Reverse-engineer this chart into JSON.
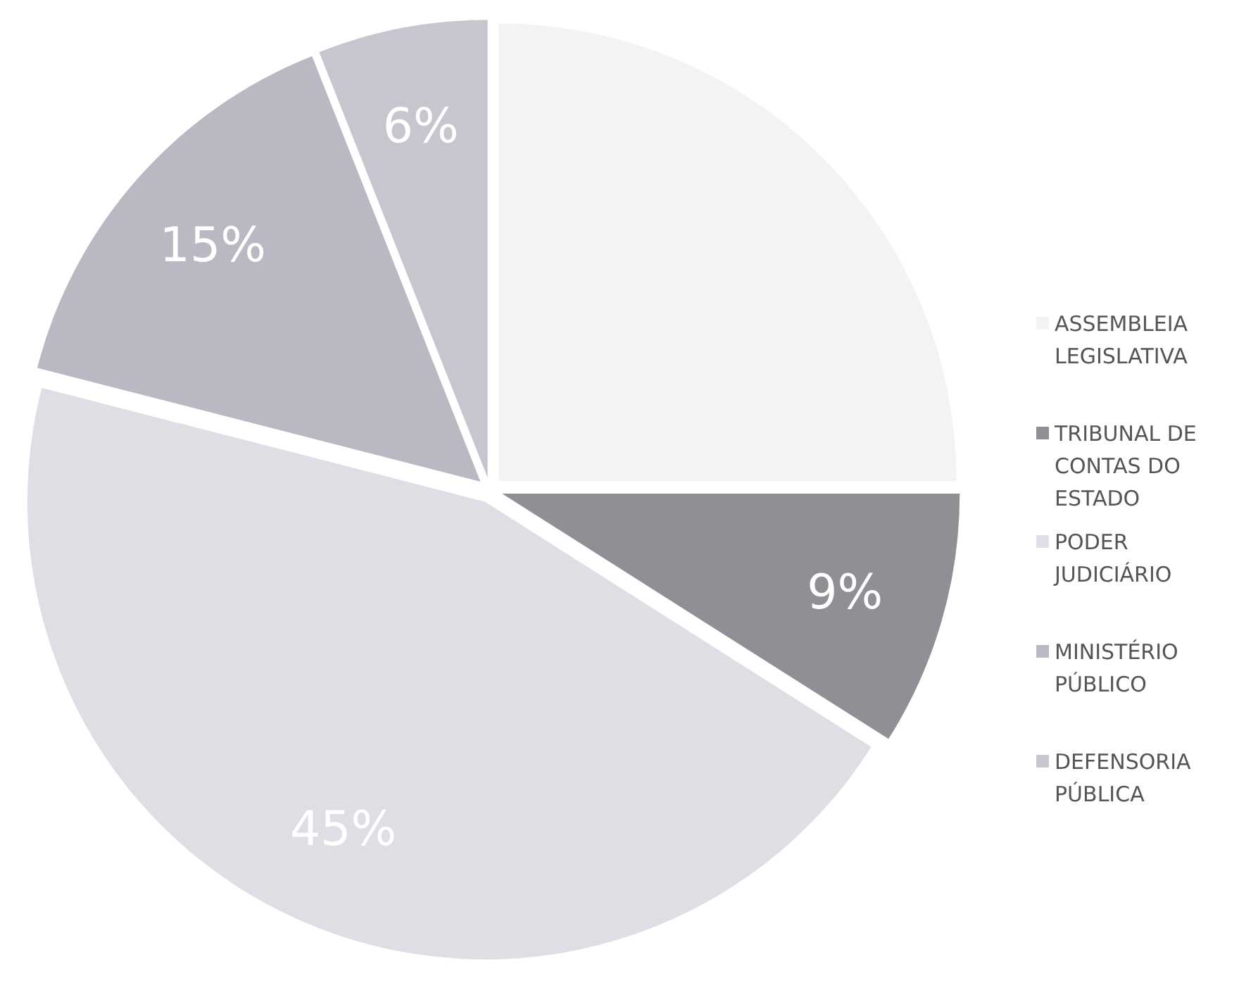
{
  "chart_data": {
    "type": "pie",
    "categories": [
      "ASSEMBLEIA LEGISLATIVA",
      "TRIBUNAL DE CONTAS DO ESTADO",
      "PODER JUDICIÁRIO",
      "MINISTÉRIO PÚBLICO",
      "DEFENSORIA PÚBLICA"
    ],
    "values": [
      25,
      9,
      45,
      15,
      6
    ],
    "value_labels": [
      null,
      "9%",
      "45%",
      "15%",
      "6%"
    ],
    "colors": [
      "#f3f3f5",
      "#8f8f96",
      "#dedee5",
      "#b9b9c4",
      "#c6c6ce"
    ],
    "legend": "right"
  }
}
